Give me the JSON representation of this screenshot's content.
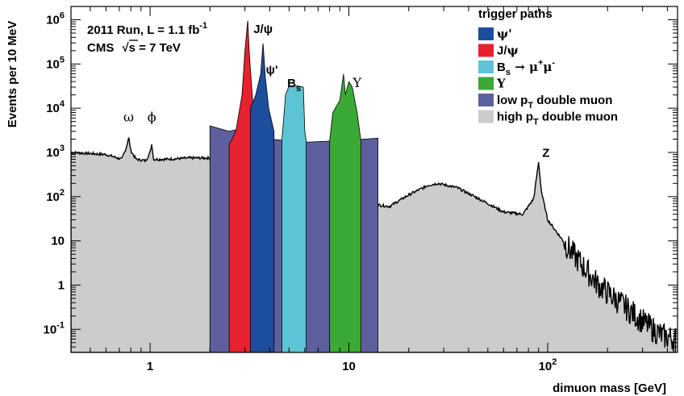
{
  "chart_data": {
    "type": "area",
    "xlabel": "dimuon mass [GeV]",
    "ylabel": "Events per 10 MeV",
    "x_scale": "log",
    "y_scale": "log",
    "xlim": [
      0.4,
      450
    ],
    "ylim": [
      0.03,
      2000000
    ],
    "x_ticks": [
      {
        "value": 1,
        "label": "1"
      },
      {
        "value": 10,
        "label": "10"
      },
      {
        "value": 100,
        "label": "10",
        "sup": "2"
      }
    ],
    "y_ticks": [
      {
        "value": 0.1,
        "base": "10",
        "sup": "-1"
      },
      {
        "value": 1,
        "base": "1",
        "sup": ""
      },
      {
        "value": 10,
        "base": "10",
        "sup": ""
      },
      {
        "value": 100,
        "base": "10",
        "sup": "2"
      },
      {
        "value": 1000,
        "base": "10",
        "sup": "3"
      },
      {
        "value": 10000,
        "base": "10",
        "sup": "4"
      },
      {
        "value": 100000,
        "base": "10",
        "sup": "5"
      },
      {
        "value": 1000000,
        "base": "10",
        "sup": "6"
      }
    ],
    "annotations": {
      "run_pre": "2011 Run, L = 1.1 fb",
      "run_sup": "-1",
      "cms_pre": "CMS",
      "sqrt_symbol": "√",
      "cms_post": "s = 7 TeV"
    },
    "peak_labels": [
      {
        "text": "ω",
        "x": 0.78,
        "y": 5000,
        "style": "greek"
      },
      {
        "text": "ϕ",
        "x": 1.02,
        "y": 5000,
        "style": "greek"
      },
      {
        "text": "J/ψ",
        "x": 3.7,
        "y": 500000,
        "style": "ann"
      },
      {
        "text": "ψ'",
        "x": 4.1,
        "y": 60000,
        "style": "ann"
      },
      {
        "text": "B",
        "sub": "s",
        "x": 5.3,
        "y": 30000,
        "style": "ann"
      },
      {
        "text": "Υ",
        "x": 11.0,
        "y": 30000,
        "style": "greek"
      },
      {
        "text": "Z",
        "x": 98,
        "y": 800,
        "style": "ann"
      }
    ],
    "legend": {
      "title": "trigger paths",
      "position": "top-right",
      "entries": [
        {
          "id": "psi2s",
          "parts": [
            {
              "t": "ψ'",
              "greek": true
            }
          ],
          "color": "#1d4e9e"
        },
        {
          "id": "jpsi",
          "parts": [
            {
              "t": "J/",
              "greek": false
            },
            {
              "t": "ψ",
              "greek": true
            }
          ],
          "color": "#e8212e"
        },
        {
          "id": "bs",
          "parts": [
            {
              "t": "B",
              "greek": false
            },
            {
              "t": "s",
              "sub": true
            },
            {
              "t": " → μ",
              "greek": true
            },
            {
              "t": "+",
              "sup": true
            },
            {
              "t": "μ",
              "greek": true
            },
            {
              "t": "-",
              "sup": true
            }
          ],
          "color": "#5dc4d6"
        },
        {
          "id": "upsilon",
          "parts": [
            {
              "t": "Υ",
              "greek": true
            }
          ],
          "color": "#3aa935"
        },
        {
          "id": "lowpt",
          "parts": [
            {
              "t": "low p",
              "greek": false
            },
            {
              "t": "T",
              "sub": true
            },
            {
              "t": " double muon",
              "greek": false
            }
          ],
          "color": "#5e5f9e"
        },
        {
          "id": "highpt",
          "parts": [
            {
              "t": "high p",
              "greek": false
            },
            {
              "t": "T",
              "sub": true
            },
            {
              "t": " double muon",
              "greek": false
            }
          ],
          "color": "#cccccc"
        }
      ]
    },
    "series": [
      {
        "name": "high pT double muon",
        "color": "#cccccc",
        "shape": "envelope",
        "points": [
          [
            0.4,
            1000
          ],
          [
            0.6,
            900
          ],
          [
            0.72,
            700
          ],
          [
            0.76,
            1300
          ],
          [
            0.78,
            2200
          ],
          [
            0.8,
            1100
          ],
          [
            0.85,
            700
          ],
          [
            0.95,
            650
          ],
          [
            1.0,
            1000
          ],
          [
            1.02,
            1600
          ],
          [
            1.04,
            700
          ],
          [
            1.2,
            700
          ],
          [
            1.6,
            750
          ],
          [
            2.0,
            750
          ],
          [
            2.5,
            650
          ],
          [
            2.9,
            500
          ],
          [
            3.0,
            3000
          ],
          [
            3.05,
            300000
          ],
          [
            3.12,
            2000
          ],
          [
            3.3,
            500
          ],
          [
            3.6,
            600
          ],
          [
            3.68,
            2000
          ],
          [
            3.75,
            300
          ],
          [
            5.0,
            250
          ],
          [
            7.0,
            200
          ],
          [
            9.0,
            170
          ],
          [
            9.3,
            800
          ],
          [
            9.5,
            1500
          ],
          [
            9.7,
            300
          ],
          [
            10.0,
            160
          ],
          [
            10.3,
            120
          ],
          [
            12.0,
            90
          ],
          [
            14,
            65
          ],
          [
            16,
            60
          ],
          [
            20,
            110
          ],
          [
            25,
            180
          ],
          [
            28,
            200
          ],
          [
            35,
            160
          ],
          [
            45,
            90
          ],
          [
            60,
            45
          ],
          [
            75,
            40
          ],
          [
            85,
            90
          ],
          [
            90,
            600
          ],
          [
            93,
            130
          ],
          [
            100,
            30
          ],
          [
            130,
            6
          ],
          [
            180,
            1
          ],
          [
            250,
            0.3
          ],
          [
            320,
            0.12
          ],
          [
            380,
            0.07
          ],
          [
            440,
            0.06
          ]
        ]
      },
      {
        "name": "low pT double muon",
        "color": "#5e5f9e",
        "shape": "band",
        "points": [
          [
            2.0,
            4000
          ],
          [
            2.5,
            3000
          ],
          [
            2.9,
            3500
          ],
          [
            3.4,
            2500
          ],
          [
            4,
            2000
          ],
          [
            6,
            1700
          ],
          [
            8,
            1800
          ],
          [
            9.5,
            1900
          ],
          [
            12,
            2000
          ],
          [
            14,
            2100
          ]
        ]
      },
      {
        "name": "J/psi",
        "color": "#e8212e",
        "shape": "peak",
        "points": [
          [
            2.5,
            1500
          ],
          [
            2.7,
            3000
          ],
          [
            2.9,
            20000
          ],
          [
            3.0,
            200000
          ],
          [
            3.1,
            1000000
          ],
          [
            3.15,
            200000
          ],
          [
            3.3,
            10000
          ],
          [
            3.5,
            3000
          ],
          [
            3.7,
            1800
          ]
        ]
      },
      {
        "name": "psi'",
        "color": "#1d4e9e",
        "shape": "peak",
        "points": [
          [
            3.2,
            10000
          ],
          [
            3.4,
            20000
          ],
          [
            3.6,
            60000
          ],
          [
            3.7,
            300000
          ],
          [
            3.8,
            50000
          ],
          [
            3.95,
            10000
          ],
          [
            4.2,
            3000
          ]
        ]
      },
      {
        "name": "Bs to mumu",
        "color": "#5dc4d6",
        "shape": "plateau",
        "points": [
          [
            4.6,
            1800
          ],
          [
            4.8,
            20000
          ],
          [
            5.0,
            32000
          ],
          [
            5.5,
            32000
          ],
          [
            5.9,
            30000
          ],
          [
            6.0,
            3000
          ],
          [
            6.1,
            1800
          ]
        ]
      },
      {
        "name": "Upsilon",
        "color": "#3aa935",
        "shape": "peak",
        "points": [
          [
            8.0,
            1800
          ],
          [
            8.3,
            8000
          ],
          [
            9.0,
            15000
          ],
          [
            9.4,
            60000
          ],
          [
            9.6,
            20000
          ],
          [
            10.0,
            40000
          ],
          [
            10.4,
            30000
          ],
          [
            11.0,
            8000
          ],
          [
            11.5,
            1800
          ]
        ]
      }
    ]
  }
}
